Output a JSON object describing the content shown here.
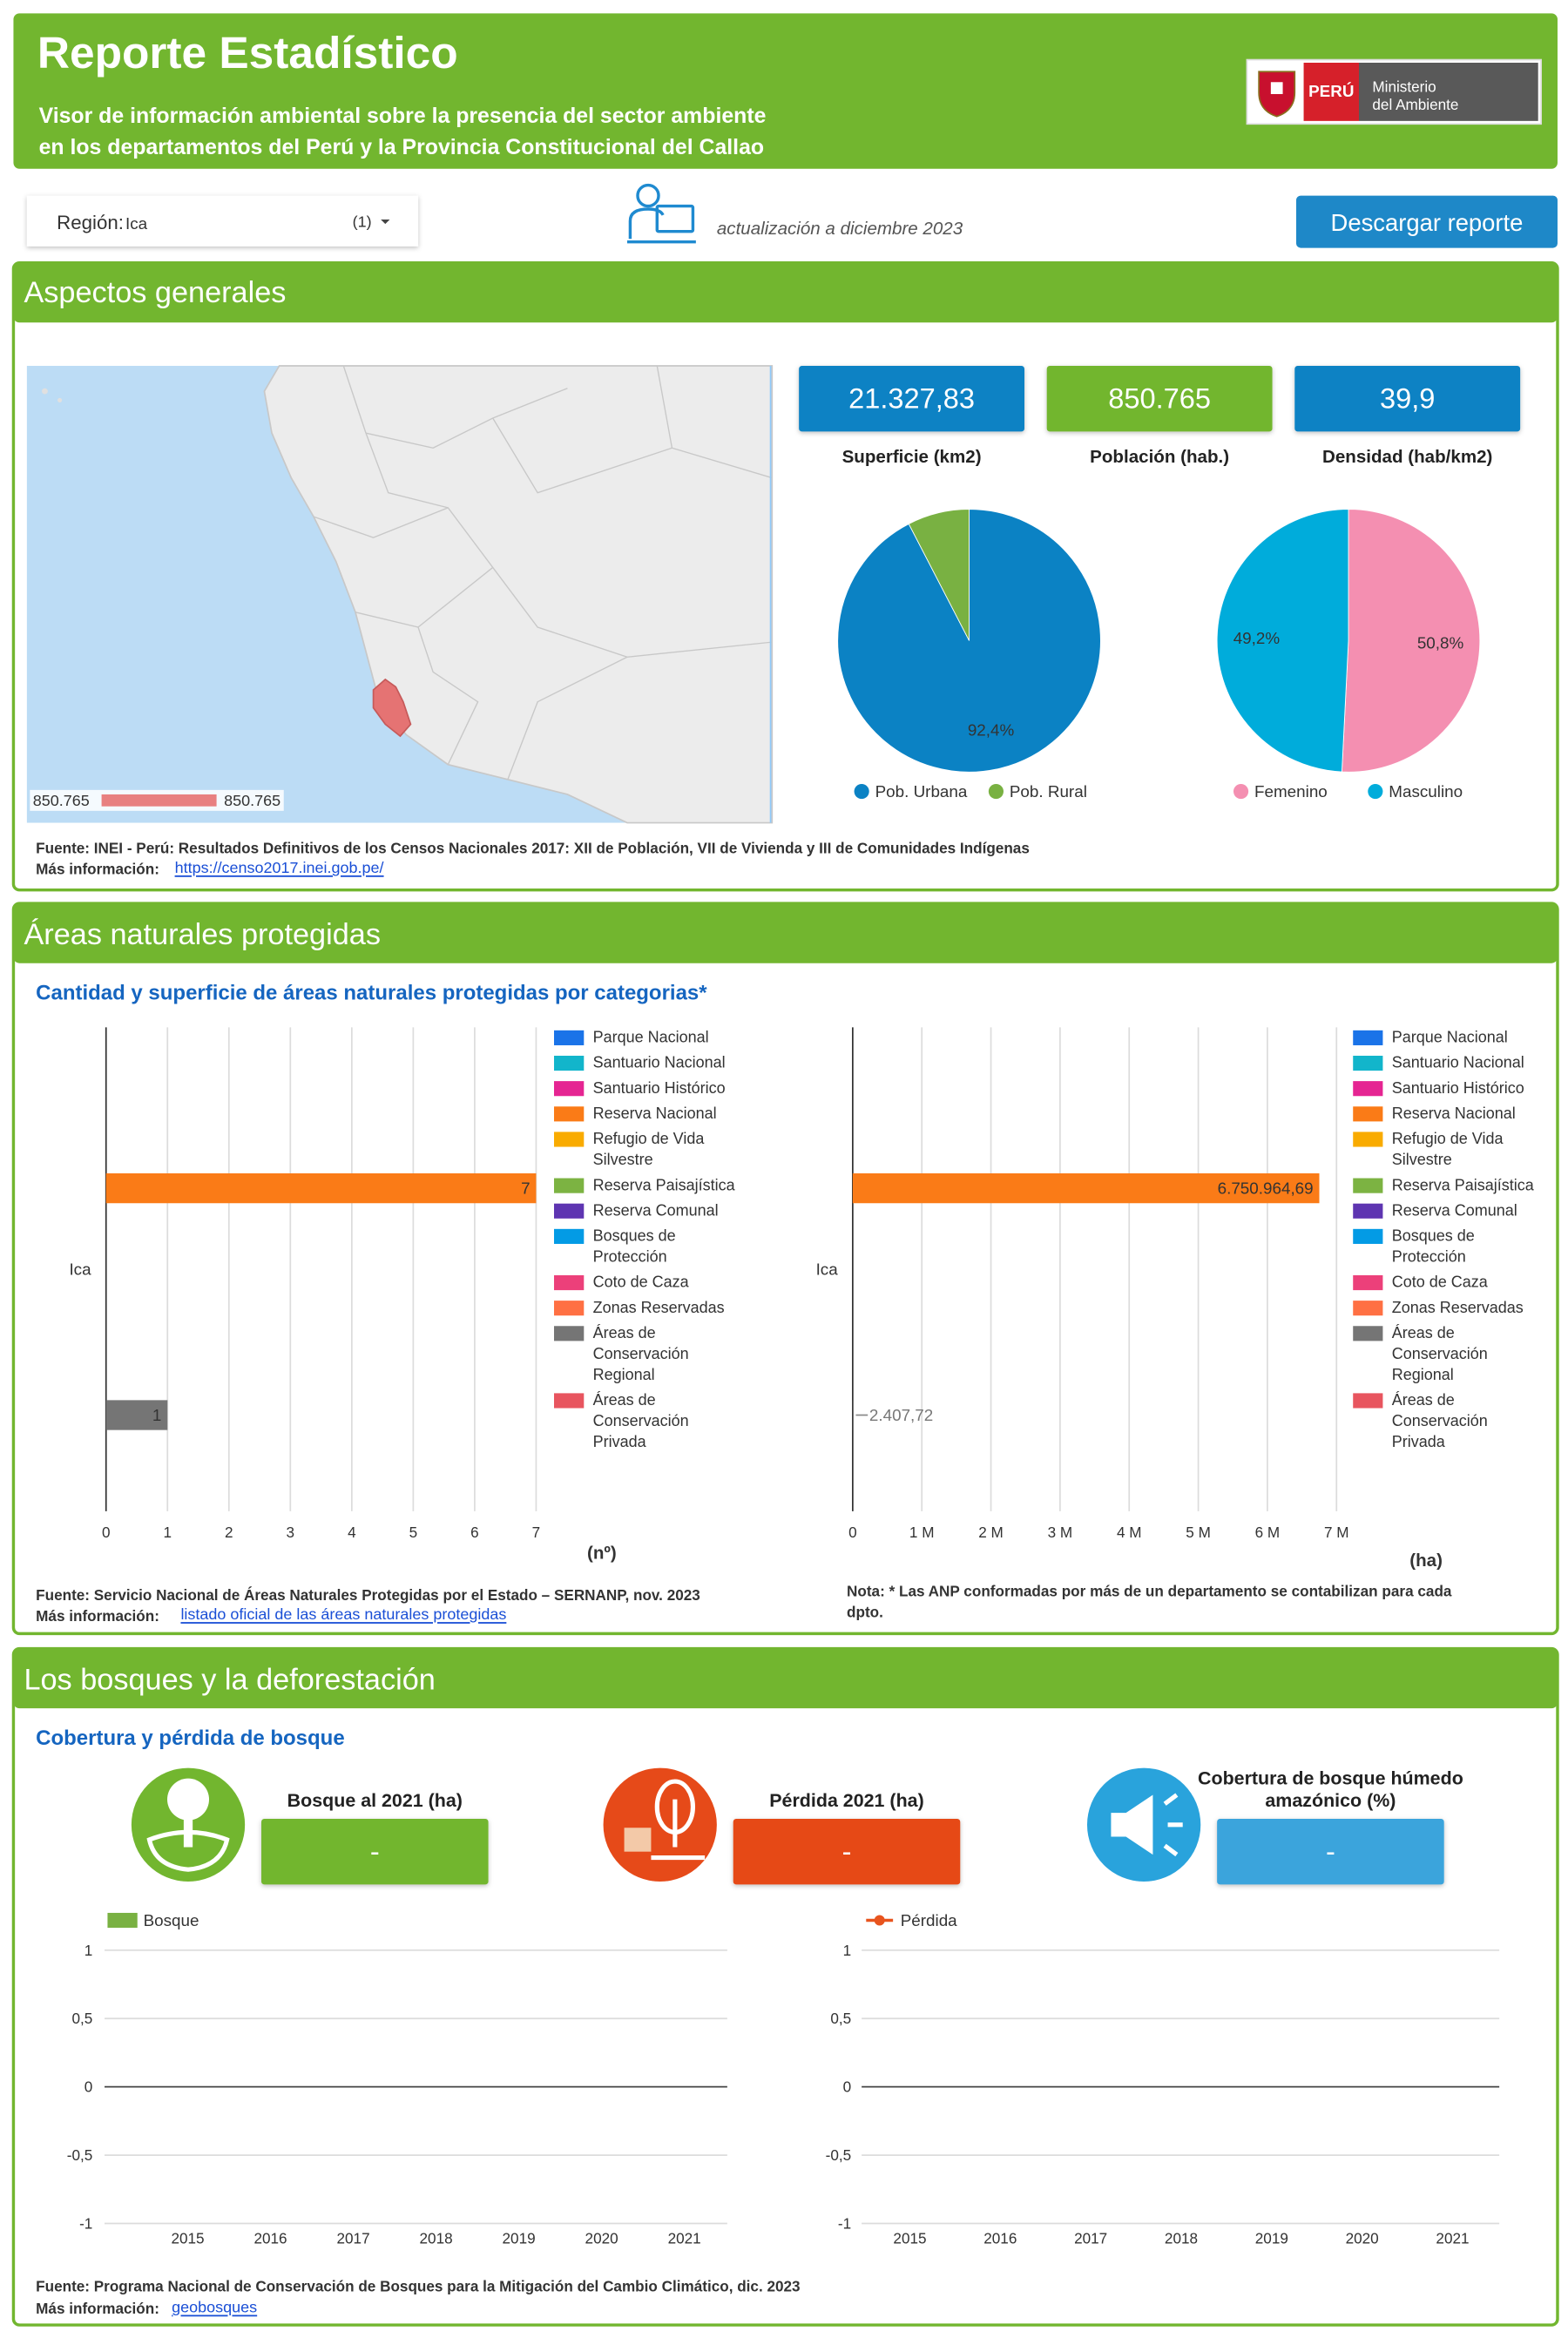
{
  "header": {
    "title": "Reporte Estadístico",
    "subtitle": [
      "Visor de información ambiental sobre la presencia del sector ambiente",
      "en los departamentos del Perú y la Provincia Constitucional del Callao"
    ],
    "logo": {
      "country": "PERÚ",
      "ministry": [
        "Ministerio",
        "del Ambiente"
      ]
    }
  },
  "toolbar": {
    "region_label": "Región:",
    "region": "Ica",
    "selected_count": "(1)",
    "updated": "actualización a diciembre 2023",
    "download": "Descargar reporte"
  },
  "general": {
    "title": "Aspectos generales",
    "map_legend": {
      "min": "850.765",
      "max": "850.765"
    },
    "kpis": [
      {
        "value": "21.327,83",
        "label": "Superficie (km2)"
      },
      {
        "value": "850.765",
        "label": "Población (hab.)"
      },
      {
        "value": "39,9",
        "label": "Densidad (hab/km2)"
      }
    ],
    "charts": [
      {
        "type": "pie",
        "categories": [
          "Pob. Urbana",
          "Pob. Rural"
        ],
        "values": [
          92.4,
          7.6
        ],
        "value_labels": [
          "92,4%",
          null
        ],
        "colors": [
          "#0b82c4",
          "#79b142"
        ]
      },
      {
        "type": "pie",
        "categories": [
          "Femenino",
          "Masculino"
        ],
        "values": [
          50.8,
          49.2
        ],
        "value_labels": [
          "50,8%",
          "49,2%"
        ],
        "colors": [
          "#f48fb1",
          "#00acdb"
        ]
      }
    ],
    "source": "Fuente: INEI - Perú: Resultados Definitivos de los Censos Nacionales 2017: XII de Población, VII de Vivienda y III de Comunidades Indígenas",
    "more_label": "Más información:",
    "link": "https://censo2017.inei.gob.pe/"
  },
  "protected_areas": {
    "title": "Áreas naturales protegidas",
    "subtitle": "Cantidad y superficie de áreas naturales protegidas por categorias*",
    "charts": [
      {
        "type": "bar",
        "orientation": "horizontal",
        "categories": [
          "Ica"
        ],
        "xlabel": "(nº)",
        "xlim": [
          0,
          7
        ],
        "xticks": [
          0,
          1,
          2,
          3,
          4,
          5,
          6,
          7
        ],
        "grid": true,
        "series": [
          {
            "name": "Parque Nacional",
            "color": "#1a73e8",
            "values": [
              null
            ]
          },
          {
            "name": "Santuario Nacional",
            "color": "#12b5cb",
            "values": [
              null
            ]
          },
          {
            "name": "Santuario Histórico",
            "color": "#e52592",
            "values": [
              null
            ]
          },
          {
            "name": "Reserva Nacional",
            "color": "#fa7b17",
            "values": [
              7
            ]
          },
          {
            "name": "Refugio de Vida Silvestre",
            "color": "#f9ab00",
            "values": [
              null
            ]
          },
          {
            "name": "Reserva Paisajística",
            "color": "#7cb342",
            "values": [
              null
            ]
          },
          {
            "name": "Reserva Comunal",
            "color": "#5e35b1",
            "values": [
              null
            ]
          },
          {
            "name": "Bosques de Protección",
            "color": "#039be5",
            "values": [
              null
            ]
          },
          {
            "name": "Coto de Caza",
            "color": "#ec407a",
            "values": [
              null
            ]
          },
          {
            "name": "Zonas Reservadas",
            "color": "#ff7043",
            "values": [
              null
            ]
          },
          {
            "name": "Áreas de Conservación Regional",
            "color": "#757575",
            "values": [
              1
            ]
          },
          {
            "name": "Áreas de Conservación Privada",
            "color": "#e8555f",
            "values": [
              null
            ]
          }
        ]
      },
      {
        "type": "bar",
        "orientation": "horizontal",
        "categories": [
          "Ica"
        ],
        "xlabel": "(ha)",
        "xlim": [
          0,
          7000000
        ],
        "xticks": [
          0,
          {
            "value": 1000000,
            "label": "1 M"
          },
          {
            "value": 2000000,
            "label": "2 M"
          },
          {
            "value": 3000000,
            "label": "3 M"
          },
          {
            "value": 4000000,
            "label": "4 M"
          },
          {
            "value": 5000000,
            "label": "5 M"
          },
          {
            "value": 6000000,
            "label": "6 M"
          },
          {
            "value": 7000000,
            "label": "7 M"
          }
        ],
        "grid": true,
        "series": [
          {
            "name": "Parque Nacional",
            "color": "#1a73e8",
            "values": [
              null
            ]
          },
          {
            "name": "Santuario Nacional",
            "color": "#12b5cb",
            "values": [
              null
            ]
          },
          {
            "name": "Santuario Histórico",
            "color": "#e52592",
            "values": [
              null
            ]
          },
          {
            "name": "Reserva Nacional",
            "color": "#fa7b17",
            "values": [
              6750964.69
            ],
            "value_labels": [
              "6.750.964,69"
            ]
          },
          {
            "name": "Refugio de Vida Silvestre",
            "color": "#f9ab00",
            "values": [
              null
            ]
          },
          {
            "name": "Reserva Paisajística",
            "color": "#7cb342",
            "values": [
              null
            ]
          },
          {
            "name": "Reserva Comunal",
            "color": "#5e35b1",
            "values": [
              null
            ]
          },
          {
            "name": "Bosques de Protección",
            "color": "#039be5",
            "values": [
              null
            ]
          },
          {
            "name": "Coto de Caza",
            "color": "#ec407a",
            "values": [
              null
            ]
          },
          {
            "name": "Zonas Reservadas",
            "color": "#ff7043",
            "values": [
              null
            ]
          },
          {
            "name": "Áreas de Conservación Regional",
            "color": "#757575",
            "values": [
              2407.72
            ],
            "value_labels": [
              "2.407,72"
            ]
          },
          {
            "name": "Áreas de Conservación Privada",
            "color": "#e8555f",
            "values": [
              null
            ]
          }
        ]
      }
    ],
    "source": "Fuente: Servicio Nacional de Áreas Naturales Protegidas por el Estado – SERNANP, nov. 2023",
    "more_label": "Más información:",
    "link": "listado oficial de las áreas naturales protegidas",
    "note": "Nota: * Las ANP conformadas por más de un departamento se contabilizan para cada dpto."
  },
  "forests": {
    "title": "Los bosques y la deforestación",
    "subtitle": "Cobertura y pérdida de bosque",
    "kpis": [
      {
        "label": "Bosque al 2021 (ha)",
        "value": "-"
      },
      {
        "label": "Pérdida 2021 (ha)",
        "value": "-"
      },
      {
        "label": "Cobertura de bosque húmedo amazónico (%)",
        "value": "-"
      }
    ],
    "charts": [
      {
        "type": "bar",
        "categories": [
          "2015",
          "2016",
          "2017",
          "2018",
          "2019",
          "2020",
          "2021"
        ],
        "series": [
          {
            "name": "Bosque",
            "color": "#79b142",
            "values": [
              null,
              null,
              null,
              null,
              null,
              null,
              null
            ]
          }
        ],
        "ylim": [
          -1,
          1
        ],
        "yticks": [
          1,
          {
            "value": 0.5,
            "label": "0,5"
          },
          0,
          {
            "value": -0.5,
            "label": "-0,5"
          },
          -1
        ],
        "grid": true
      },
      {
        "type": "line",
        "categories": [
          "2015",
          "2016",
          "2017",
          "2018",
          "2019",
          "2020",
          "2021"
        ],
        "series": [
          {
            "name": "Pérdida",
            "color": "#e8541e",
            "values": [
              null,
              null,
              null,
              null,
              null,
              null,
              null
            ]
          }
        ],
        "ylim": [
          -1,
          1
        ],
        "yticks": [
          1,
          {
            "value": 0.5,
            "label": "0,5"
          },
          0,
          {
            "value": -0.5,
            "label": "-0,5"
          },
          -1
        ],
        "grid": true
      }
    ],
    "source": "Fuente: Programa Nacional de Conservación de Bosques para la Mitigación del Cambio Climático, dic. 2023",
    "more_label": "Más información:",
    "link": "geobosques"
  }
}
